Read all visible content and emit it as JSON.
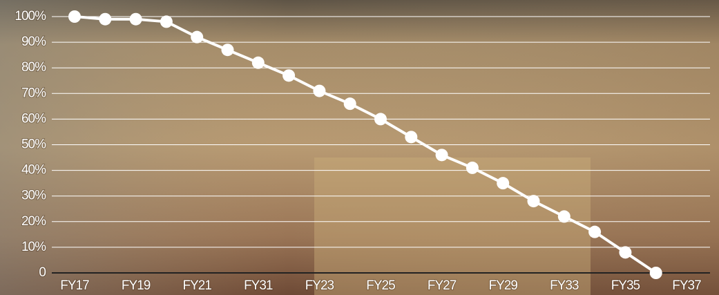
{
  "chart_data": {
    "type": "line",
    "categories": [
      "FY17",
      null,
      "FY19",
      null,
      "FY21",
      null,
      "FY31",
      null,
      "FY23",
      null,
      "FY25",
      null,
      "FY27",
      null,
      "FY29",
      null,
      "FY33",
      null,
      "FY35",
      null,
      "FY37"
    ],
    "values": [
      100,
      99,
      99,
      98,
      92,
      87,
      82,
      77,
      71,
      66,
      60,
      53,
      46,
      41,
      35,
      28,
      22,
      16,
      8,
      0,
      null
    ],
    "color": "#ffffff",
    "ylim": [
      0,
      100
    ],
    "yticks": [
      0,
      {
        "value": 10,
        "label": "10%"
      },
      {
        "value": 20,
        "label": "20%"
      },
      {
        "value": 30,
        "label": "30%"
      },
      {
        "value": 40,
        "label": "40%"
      },
      {
        "value": 50,
        "label": "50%"
      },
      {
        "value": 60,
        "label": "60%"
      },
      {
        "value": 70,
        "label": "70%"
      },
      {
        "value": 80,
        "label": "80%"
      },
      {
        "value": 90,
        "label": "90%"
      },
      {
        "value": 100,
        "label": "100%"
      }
    ],
    "grid": true
  }
}
